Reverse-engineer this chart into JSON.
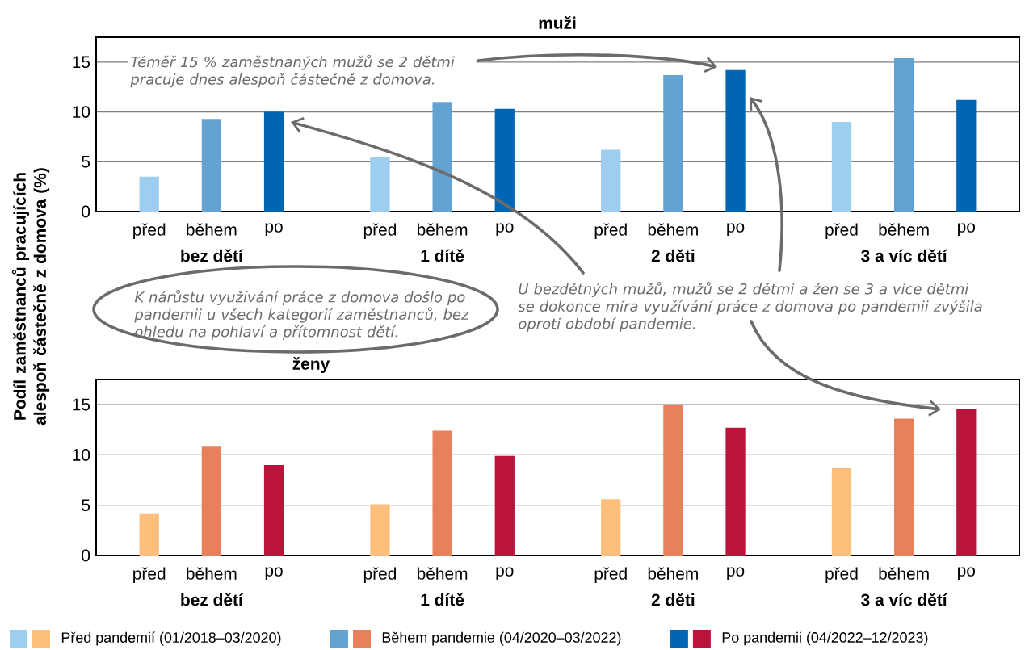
{
  "chart_data": [
    {
      "type": "bar",
      "title": "muži",
      "ylabel": "Podíl zaměstnanců pracujících alespoň částečně z domova (%)",
      "categories": [
        "bez dětí",
        "1 dítě",
        "2 děti",
        "3 a víc dětí"
      ],
      "series": [
        {
          "color": "#9dcdef",
          "values": [
            3.5,
            5.5,
            6.2,
            9.0
          ]
        },
        {
          "color": "#64a3d1",
          "values": [
            9.3,
            11.0,
            13.7,
            15.4
          ]
        },
        {
          "color": "#0066b3",
          "values": [
            10.0,
            10.3,
            14.2,
            11.2
          ]
        }
      ],
      "ylim": [
        0,
        17.5
      ],
      "yticks": [
        0,
        5,
        10,
        15
      ],
      "grid": "y",
      "annotations": [
        "před",
        "během",
        "po",
        "Téměř 15 % zaměstnaných mužů se 2 dětmi pracuje dnes alespoň částečně z domova.",
        "K nárůstu využívání práce z domova došlo po pandemii u všech kategorií zaměstnanců, bez ohledu na pohlaví a přítomnost dětí.",
        "U bezdětných mužů, mužů se 2 dětmi a žen se 3 a více dětmi se dokonce míra využívání práce z domova po pandemii zvýšila oproti období pandemie."
      ]
    },
    {
      "type": "bar",
      "title": "ženy",
      "categories": [
        "bez dětí",
        "1 dítě",
        "2 děti",
        "3 a víc dětí"
      ],
      "series": [
        {
          "name": "Před pandemií (01/2018–03/2020)",
          "color": "#fdbf7b",
          "values": [
            4.2,
            5.1,
            5.6,
            8.7
          ]
        },
        {
          "name": "Během pandemie (04/2020–03/2022)",
          "color": "#e8805a",
          "values": [
            10.9,
            12.4,
            15.0,
            13.6
          ]
        },
        {
          "name": "Po pandemii (04/2022–12/2023)",
          "color": "#bb143c",
          "values": [
            9.0,
            9.9,
            12.7,
            14.6
          ]
        }
      ],
      "ylim": [
        0,
        17.5
      ],
      "yticks": [
        0,
        5,
        10,
        15
      ],
      "grid": "y",
      "legend": "bottom",
      "annotations": [
        "před",
        "během",
        "po"
      ]
    }
  ]
}
